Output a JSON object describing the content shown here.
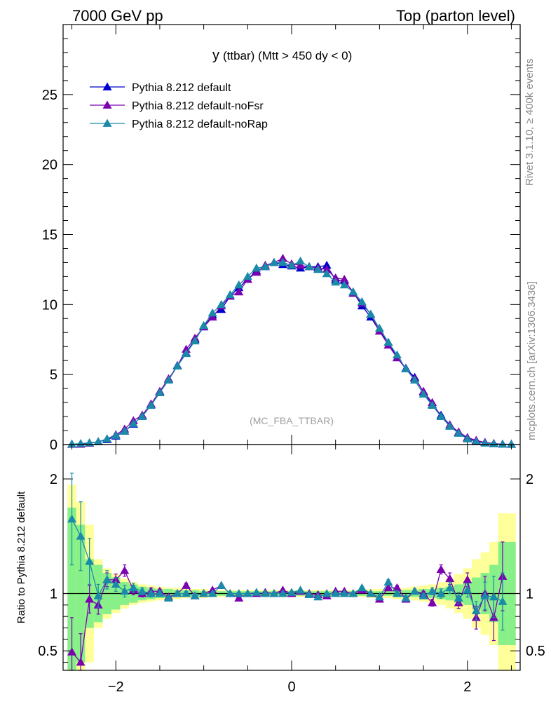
{
  "header": {
    "left": "7000 GeV pp",
    "right": "Top (parton level)"
  },
  "side_text": {
    "rivet": "Rivet 3.1.10, ≥ 400k events",
    "mcplots": "mcplots.cern.ch [arXiv:1306.3436]"
  },
  "plot_title": {
    "main": "y",
    "sub": "(ttbar) (Mtt > 450 dy < 0)"
  },
  "analysis_tag": "(MC_FBA_TTBAR)",
  "ratio_ylabel": "Ratio to Pythia 8.212 default",
  "colors": {
    "default": "#0000cc",
    "noFsr": "#7a00b0",
    "noRap": "#1a8aa8",
    "band_outer": "#ffff99",
    "band_inner": "#88f088"
  },
  "chart_data": [
    {
      "type": "line",
      "panel": "main",
      "xlim": [
        -2.6,
        2.6
      ],
      "ylim": [
        0,
        30
      ],
      "x_ticks": [
        -2,
        0,
        2
      ],
      "y_ticks": [
        {
          "value": 0,
          "label": "0"
        },
        {
          "value": 5,
          "label": "5"
        },
        {
          "value": 10,
          "label": "10"
        },
        {
          "value": 15,
          "label": "15"
        },
        {
          "value": 20,
          "label": "20"
        },
        {
          "value": 25,
          "label": "25"
        }
      ],
      "legend_position": "top-left",
      "x": [
        -2.5,
        -2.4,
        -2.3,
        -2.2,
        -2.1,
        -2.0,
        -1.9,
        -1.8,
        -1.7,
        -1.6,
        -1.5,
        -1.4,
        -1.3,
        -1.2,
        -1.1,
        -1.0,
        -0.9,
        -0.8,
        -0.7,
        -0.6,
        -0.5,
        -0.4,
        -0.3,
        -0.2,
        -0.1,
        0.0,
        0.1,
        0.2,
        0.3,
        0.4,
        0.5,
        0.6,
        0.7,
        0.8,
        0.9,
        1.0,
        1.1,
        1.2,
        1.3,
        1.4,
        1.5,
        1.6,
        1.7,
        1.8,
        1.9,
        2.0,
        2.1,
        2.2,
        2.3,
        2.4,
        2.5
      ],
      "series": [
        {
          "name": "Pythia 8.212 default",
          "color_key": "default",
          "values": [
            0.02,
            0.05,
            0.1,
            0.2,
            0.35,
            0.6,
            0.95,
            1.45,
            2.05,
            2.85,
            3.75,
            4.65,
            5.65,
            6.55,
            7.5,
            8.4,
            9.25,
            9.65,
            10.6,
            11.2,
            11.8,
            12.4,
            12.7,
            13.0,
            12.85,
            12.75,
            12.6,
            12.7,
            12.7,
            12.8,
            11.75,
            11.7,
            10.9,
            9.9,
            9.1,
            8.1,
            7.3,
            6.2,
            5.45,
            4.8,
            3.75,
            2.85,
            2.1,
            1.4,
            0.85,
            0.45,
            0.25,
            0.15,
            0.06,
            0.03,
            0.02
          ]
        },
        {
          "name": "Pythia 8.212 default-noFsr",
          "color_key": "noFsr",
          "values": [
            0.01,
            0.02,
            0.1,
            0.2,
            0.4,
            0.7,
            1.1,
            1.7,
            2.1,
            2.9,
            3.8,
            4.7,
            5.6,
            6.8,
            7.6,
            8.4,
            9.1,
            9.9,
            10.6,
            10.9,
            11.8,
            12.3,
            12.8,
            13.0,
            13.3,
            12.9,
            12.8,
            12.7,
            12.6,
            12.5,
            11.9,
            11.8,
            10.8,
            10.1,
            9.3,
            8.1,
            7.1,
            6.2,
            5.4,
            4.7,
            3.8,
            3.0,
            2.0,
            1.4,
            0.9,
            0.5,
            0.3,
            0.15,
            0.08,
            0.02,
            0.01
          ]
        },
        {
          "name": "Pythia 8.212 default-noRap",
          "color_key": "noRap",
          "values": [
            0.03,
            0.07,
            0.13,
            0.2,
            0.4,
            0.65,
            0.95,
            1.5,
            2.0,
            2.8,
            3.7,
            4.6,
            5.6,
            6.5,
            7.4,
            8.5,
            9.4,
            10.0,
            10.7,
            11.4,
            12.0,
            12.6,
            12.7,
            13.0,
            13.0,
            12.8,
            13.1,
            12.7,
            12.5,
            12.2,
            11.6,
            11.4,
            10.9,
            10.2,
            9.3,
            8.3,
            7.3,
            6.4,
            5.4,
            4.6,
            3.6,
            2.8,
            2.0,
            1.3,
            0.8,
            0.4,
            0.2,
            0.1,
            0.05,
            0.02,
            0.01
          ]
        }
      ]
    },
    {
      "type": "line",
      "panel": "ratio",
      "xlim": [
        -2.6,
        2.6
      ],
      "ylim": [
        0.33,
        2.3
      ],
      "x_ticks": [
        {
          "value": -2,
          "label": "−2"
        },
        {
          "value": 0,
          "label": "0"
        },
        {
          "value": 2,
          "label": "2"
        }
      ],
      "y_ticks": [
        {
          "value": 0.5,
          "label": "0.5"
        },
        {
          "value": 1,
          "label": "1"
        },
        {
          "value": 2,
          "label": "2"
        }
      ],
      "reference_line": 1,
      "band": {
        "x_edges": [
          -2.55,
          -2.45,
          -2.35,
          -2.25,
          -2.15,
          -2.05,
          -1.95,
          -1.85,
          -1.75,
          -1.65,
          -1.55,
          -1.45,
          -1.35,
          -1.25,
          -1.15,
          -1.05,
          -0.95,
          -0.85,
          -0.75,
          -0.65,
          -0.55,
          -0.45,
          -0.35,
          -0.25,
          -0.15,
          -0.05,
          0.05,
          0.15,
          0.25,
          0.35,
          0.45,
          0.55,
          0.65,
          0.75,
          0.85,
          0.95,
          1.05,
          1.15,
          1.25,
          1.35,
          1.45,
          1.55,
          1.65,
          1.75,
          1.85,
          1.95,
          2.05,
          2.15,
          2.25,
          2.35,
          2.45
        ],
        "inner_half_width": [
          0.75,
          0.6,
          0.3,
          0.25,
          0.18,
          0.14,
          0.1,
          0.08,
          0.06,
          0.05,
          0.04,
          0.04,
          0.03,
          0.03,
          0.03,
          0.02,
          0.02,
          0.02,
          0.02,
          0.02,
          0.02,
          0.02,
          0.02,
          0.02,
          0.02,
          0.02,
          0.02,
          0.02,
          0.02,
          0.02,
          0.02,
          0.02,
          0.02,
          0.02,
          0.02,
          0.02,
          0.02,
          0.03,
          0.03,
          0.03,
          0.04,
          0.04,
          0.05,
          0.06,
          0.08,
          0.1,
          0.14,
          0.18,
          0.25,
          0.45,
          0.45
        ],
        "outer_half_width": [
          0.95,
          0.8,
          0.6,
          0.3,
          0.22,
          0.17,
          0.13,
          0.1,
          0.08,
          0.07,
          0.06,
          0.05,
          0.05,
          0.04,
          0.04,
          0.04,
          0.03,
          0.03,
          0.03,
          0.03,
          0.03,
          0.03,
          0.03,
          0.03,
          0.03,
          0.03,
          0.03,
          0.03,
          0.03,
          0.03,
          0.03,
          0.03,
          0.03,
          0.03,
          0.04,
          0.04,
          0.04,
          0.05,
          0.05,
          0.06,
          0.07,
          0.08,
          0.1,
          0.13,
          0.17,
          0.22,
          0.3,
          0.36,
          0.45,
          0.7,
          0.7
        ]
      },
      "x": [
        -2.5,
        -2.4,
        -2.3,
        -2.2,
        -2.1,
        -2.0,
        -1.9,
        -1.8,
        -1.7,
        -1.6,
        -1.5,
        -1.4,
        -1.3,
        -1.2,
        -1.1,
        -1.0,
        -0.9,
        -0.8,
        -0.7,
        -0.6,
        -0.5,
        -0.4,
        -0.3,
        -0.2,
        -0.1,
        0.0,
        0.1,
        0.2,
        0.3,
        0.4,
        0.5,
        0.6,
        0.7,
        0.8,
        0.9,
        1.0,
        1.1,
        1.2,
        1.3,
        1.4,
        1.5,
        1.6,
        1.7,
        1.8,
        1.9,
        2.0,
        2.1,
        2.2,
        2.3,
        2.4
      ],
      "series": [
        {
          "name": "Pythia 8.212 default-noFsr",
          "color_key": "noFsr",
          "values": [
            0.49,
            0.4,
            0.95,
            0.9,
            1.12,
            1.12,
            1.2,
            1.03,
            1.0,
            1.02,
            1.02,
            0.97,
            1.0,
            1.07,
            0.98,
            1.0,
            1.03,
            1.07,
            1.0,
            0.96,
            1.0,
            1.0,
            1.01,
            1.0,
            1.03,
            1.0,
            1.02,
            1.0,
            0.99,
            0.98,
            1.02,
            1.02,
            1.0,
            1.03,
            1.0,
            0.95,
            1.05,
            1.05,
            0.95,
            1.02,
            1.0,
            0.92,
            1.21,
            1.13,
            0.92,
            1.12,
            0.79,
            1.0,
            0.79,
            1.15
          ],
          "errors": [
            0.3,
            0.25,
            0.12,
            0.08,
            0.06,
            0.05,
            0.05,
            0.04,
            0.03,
            0.03,
            0.02,
            0.02,
            0.02,
            0.02,
            0.02,
            0.02,
            0.01,
            0.01,
            0.01,
            0.01,
            0.01,
            0.01,
            0.01,
            0.01,
            0.01,
            0.01,
            0.01,
            0.01,
            0.01,
            0.01,
            0.01,
            0.01,
            0.01,
            0.01,
            0.01,
            0.02,
            0.02,
            0.02,
            0.02,
            0.02,
            0.02,
            0.03,
            0.04,
            0.05,
            0.05,
            0.06,
            0.1,
            0.15,
            0.2,
            0.3
          ]
        },
        {
          "name": "Pythia 8.212 default-noRap",
          "color_key": "noRap",
          "values": [
            1.65,
            1.5,
            1.28,
            0.98,
            1.12,
            1.08,
            1.02,
            1.05,
            1.02,
            1.0,
            1.0,
            0.96,
            1.0,
            1.0,
            0.98,
            1.0,
            1.0,
            1.07,
            1.0,
            1.0,
            1.0,
            1.01,
            1.0,
            1.0,
            1.0,
            1.01,
            1.03,
            0.99,
            0.97,
            1.0,
            1.0,
            1.0,
            1.0,
            1.05,
            1.0,
            0.97,
            1.1,
            1.0,
            0.96,
            1.02,
            0.98,
            1.02,
            1.0,
            1.05,
            0.96,
            1.03,
            0.85,
            0.98,
            0.97,
            0.93
          ],
          "errors": [
            0.4,
            0.3,
            0.2,
            0.1,
            0.08,
            0.06,
            0.05,
            0.04,
            0.03,
            0.03,
            0.02,
            0.02,
            0.02,
            0.02,
            0.02,
            0.02,
            0.01,
            0.01,
            0.01,
            0.01,
            0.01,
            0.01,
            0.01,
            0.01,
            0.01,
            0.01,
            0.01,
            0.01,
            0.01,
            0.01,
            0.01,
            0.01,
            0.01,
            0.01,
            0.01,
            0.02,
            0.02,
            0.02,
            0.02,
            0.02,
            0.02,
            0.03,
            0.04,
            0.05,
            0.05,
            0.06,
            0.08,
            0.12,
            0.18,
            0.25
          ]
        }
      ]
    }
  ]
}
